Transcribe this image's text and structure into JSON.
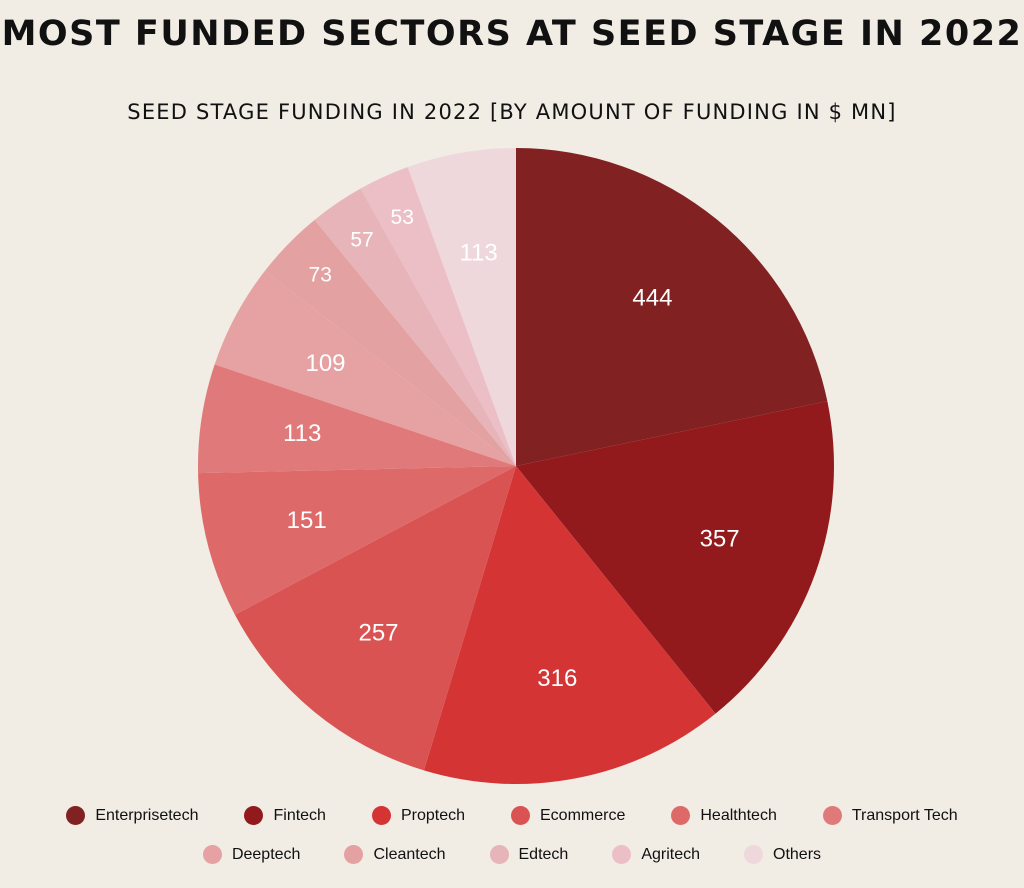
{
  "title": "MOST FUNDED SECTORS AT SEED STAGE IN 2022",
  "subtitle": "SEED STAGE FUNDING IN 2022 [BY AMOUNT OF FUNDING IN $ MN]",
  "chart_data": {
    "type": "pie",
    "title": "MOST FUNDED SECTORS AT SEED STAGE IN 2022",
    "subtitle": "SEED STAGE FUNDING IN 2022 [BY AMOUNT OF FUNDING IN $ MN]",
    "legend_position": "bottom",
    "slices": [
      {
        "label": "Enterprisetech",
        "value": 444,
        "color": "#822121"
      },
      {
        "label": "Fintech",
        "value": 357,
        "color": "#92191c"
      },
      {
        "label": "Proptech",
        "value": 316,
        "color": "#d53434"
      },
      {
        "label": "Ecommerce",
        "value": 257,
        "color": "#d95353"
      },
      {
        "label": "Healthtech",
        "value": 151,
        "color": "#de6969"
      },
      {
        "label": "Transport Tech",
        "value": 113,
        "color": "#e07a7a"
      },
      {
        "label": "Deeptech",
        "value": 109,
        "color": "#e6a1a2"
      },
      {
        "label": "Cleantech",
        "value": 73,
        "color": "#e3a1a1"
      },
      {
        "label": "Edtech",
        "value": 57,
        "color": "#e7b4b9"
      },
      {
        "label": "Agritech",
        "value": 53,
        "color": "#ecbfc7"
      },
      {
        "label": "Others",
        "value": 113,
        "color": "#efd8dc"
      }
    ]
  }
}
